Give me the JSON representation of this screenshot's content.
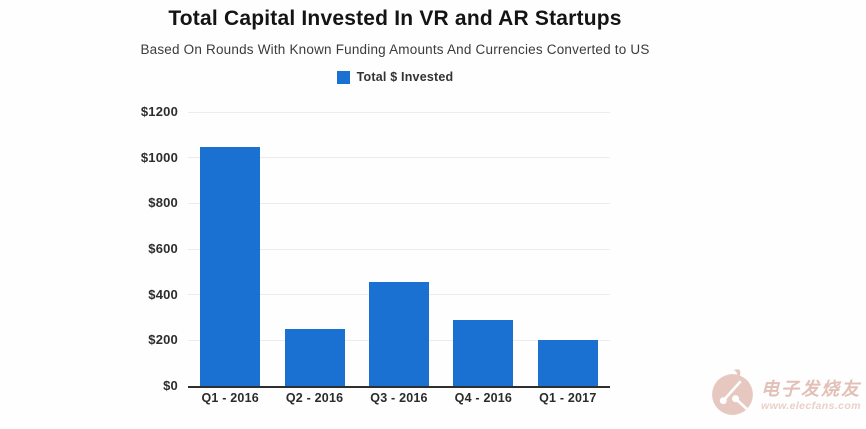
{
  "header": {
    "title": "Total Capital Invested In VR and AR Startups",
    "subtitle": "Based On Rounds With Known Funding Amounts And Currencies Converted to US"
  },
  "legend": {
    "label": "Total $ Invested",
    "swatch_color": "#1b71d1"
  },
  "chart_data": {
    "type": "bar",
    "title": "Total Capital Invested In VR and AR Startups",
    "subtitle": "Based On Rounds With Known Funding Amounts And Currencies Converted to US",
    "series_name": "Total $ Invested",
    "categories": [
      "Q1 - 2016",
      "Q2 - 2016",
      "Q3 - 2016",
      "Q4 - 2016",
      "Q1 - 2017"
    ],
    "values": [
      1045,
      250,
      455,
      290,
      200
    ],
    "xlabel": "",
    "ylabel": "",
    "ylim": [
      0,
      1200
    ],
    "ytick_step": 200,
    "ytick_labels": [
      "$0",
      "$200",
      "$400",
      "$600",
      "$800",
      "$1000",
      "$1200"
    ],
    "grid": true,
    "legend_position": "top",
    "bar_color": "#1b71d1",
    "axis_line_color": "#2e2e2e",
    "gridline_color": "#ececec"
  },
  "watermark": {
    "brand_text": "电子发烧友",
    "url_text": "www.elecfans.com",
    "color": "#e2c0b8",
    "logo": "elecfans-circuit-logo"
  }
}
